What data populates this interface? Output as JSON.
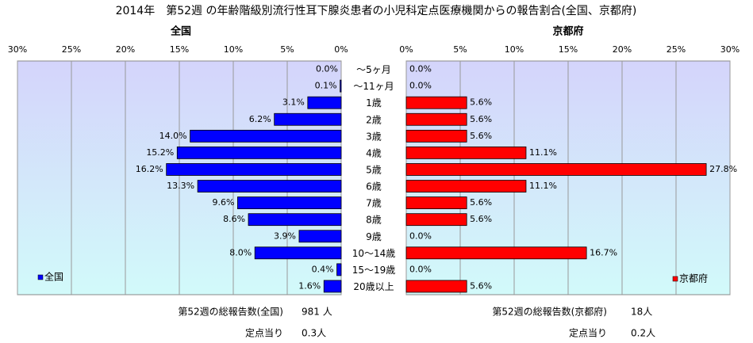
{
  "title": "2014年　第52週 の年齢階級別流行性耳下腺炎患者の小児科定点医療機関からの報告割合(全国、京都府)",
  "chart_data": {
    "type": "butterfly-bar",
    "categories": [
      "～5ヶ月",
      "～11ヶ月",
      "1歳",
      "2歳",
      "3歳",
      "4歳",
      "5歳",
      "6歳",
      "7歳",
      "8歳",
      "9歳",
      "10～14歳",
      "15～19歳",
      "20歳以上"
    ],
    "series": [
      {
        "name": "全国",
        "color": "#0000ff",
        "values": [
          0.0,
          0.1,
          3.1,
          6.2,
          14.0,
          15.2,
          16.2,
          13.3,
          9.6,
          8.6,
          3.9,
          8.0,
          0.4,
          1.6
        ],
        "value_labels": [
          "0.0%",
          "0.1%",
          "3.1%",
          "6.2%",
          "14.0%",
          "15.2%",
          "16.2%",
          "13.3%",
          "9.6%",
          "8.6%",
          "3.9%",
          "8.0%",
          "0.4%",
          "1.6%"
        ]
      },
      {
        "name": "京都府",
        "color": "#ff0000",
        "values": [
          0.0,
          0.0,
          5.6,
          5.6,
          5.6,
          11.1,
          27.8,
          11.1,
          5.6,
          5.6,
          0.0,
          16.7,
          0.0,
          5.6
        ],
        "value_labels": [
          "0.0%",
          "0.0%",
          "5.6%",
          "5.6%",
          "5.6%",
          "11.1%",
          "27.8%",
          "11.1%",
          "5.6%",
          "5.6%",
          "0.0%",
          "16.7%",
          "0.0%",
          "5.6%"
        ]
      }
    ],
    "xlim": [
      0,
      30
    ],
    "xticks": [
      {
        "value": 0,
        "label": "0%"
      },
      {
        "value": 5,
        "label": "5%"
      },
      {
        "value": 10,
        "label": "10%"
      },
      {
        "value": 15,
        "label": "15%"
      },
      {
        "value": 20,
        "label": "20%"
      },
      {
        "value": 25,
        "label": "25%"
      },
      {
        "value": 30,
        "label": "30%"
      }
    ],
    "grid": true
  },
  "footer": {
    "left": {
      "total_label": "第52週の総報告数(全国)",
      "total": "981 人",
      "per_label": "定点当り",
      "per": "0.3人"
    },
    "right": {
      "total_label": "第52週の総報告数(京都府)",
      "total": "18人",
      "per_label": "定点当り",
      "per": "0.2人"
    }
  }
}
